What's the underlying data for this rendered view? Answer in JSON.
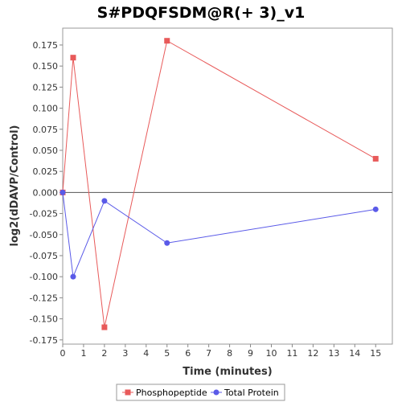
{
  "chart_data": {
    "type": "line",
    "title": "S#PDQFSDM@R(+ 3)_v1",
    "xlabel": "Time (minutes)",
    "ylabel": "log2(dDAVP/Control)",
    "xlim": [
      0,
      15.8
    ],
    "ylim": [
      -0.18,
      0.195
    ],
    "xticks": [
      0,
      1,
      2,
      3,
      4,
      5,
      6,
      7,
      8,
      9,
      10,
      11,
      12,
      13,
      14,
      15
    ],
    "yticks": [
      -0.175,
      -0.15,
      -0.125,
      -0.1,
      -0.075,
      -0.05,
      -0.025,
      0.0,
      0.025,
      0.05,
      0.075,
      0.1,
      0.125,
      0.15,
      0.175
    ],
    "ytick_labels": [
      "-0.175",
      "-0.150",
      "-0.125",
      "-0.100",
      "-0.075",
      "-0.050",
      "-0.025",
      "0.000",
      "0.025",
      "0.050",
      "0.075",
      "0.100",
      "0.125",
      "0.150",
      "0.175"
    ],
    "grid": false,
    "legend_position": "bottom",
    "series": [
      {
        "name": "Phosphopeptide",
        "color": "#e85a5a",
        "marker": "square",
        "x": [
          0,
          0.5,
          2,
          5,
          15
        ],
        "y": [
          0.0,
          0.16,
          -0.16,
          0.18,
          0.04
        ]
      },
      {
        "name": "Total Protein",
        "color": "#5a5ae8",
        "marker": "circle",
        "x": [
          0,
          0.5,
          2,
          5,
          15
        ],
        "y": [
          0.0,
          -0.1,
          -0.01,
          -0.06,
          -0.02
        ]
      }
    ]
  }
}
